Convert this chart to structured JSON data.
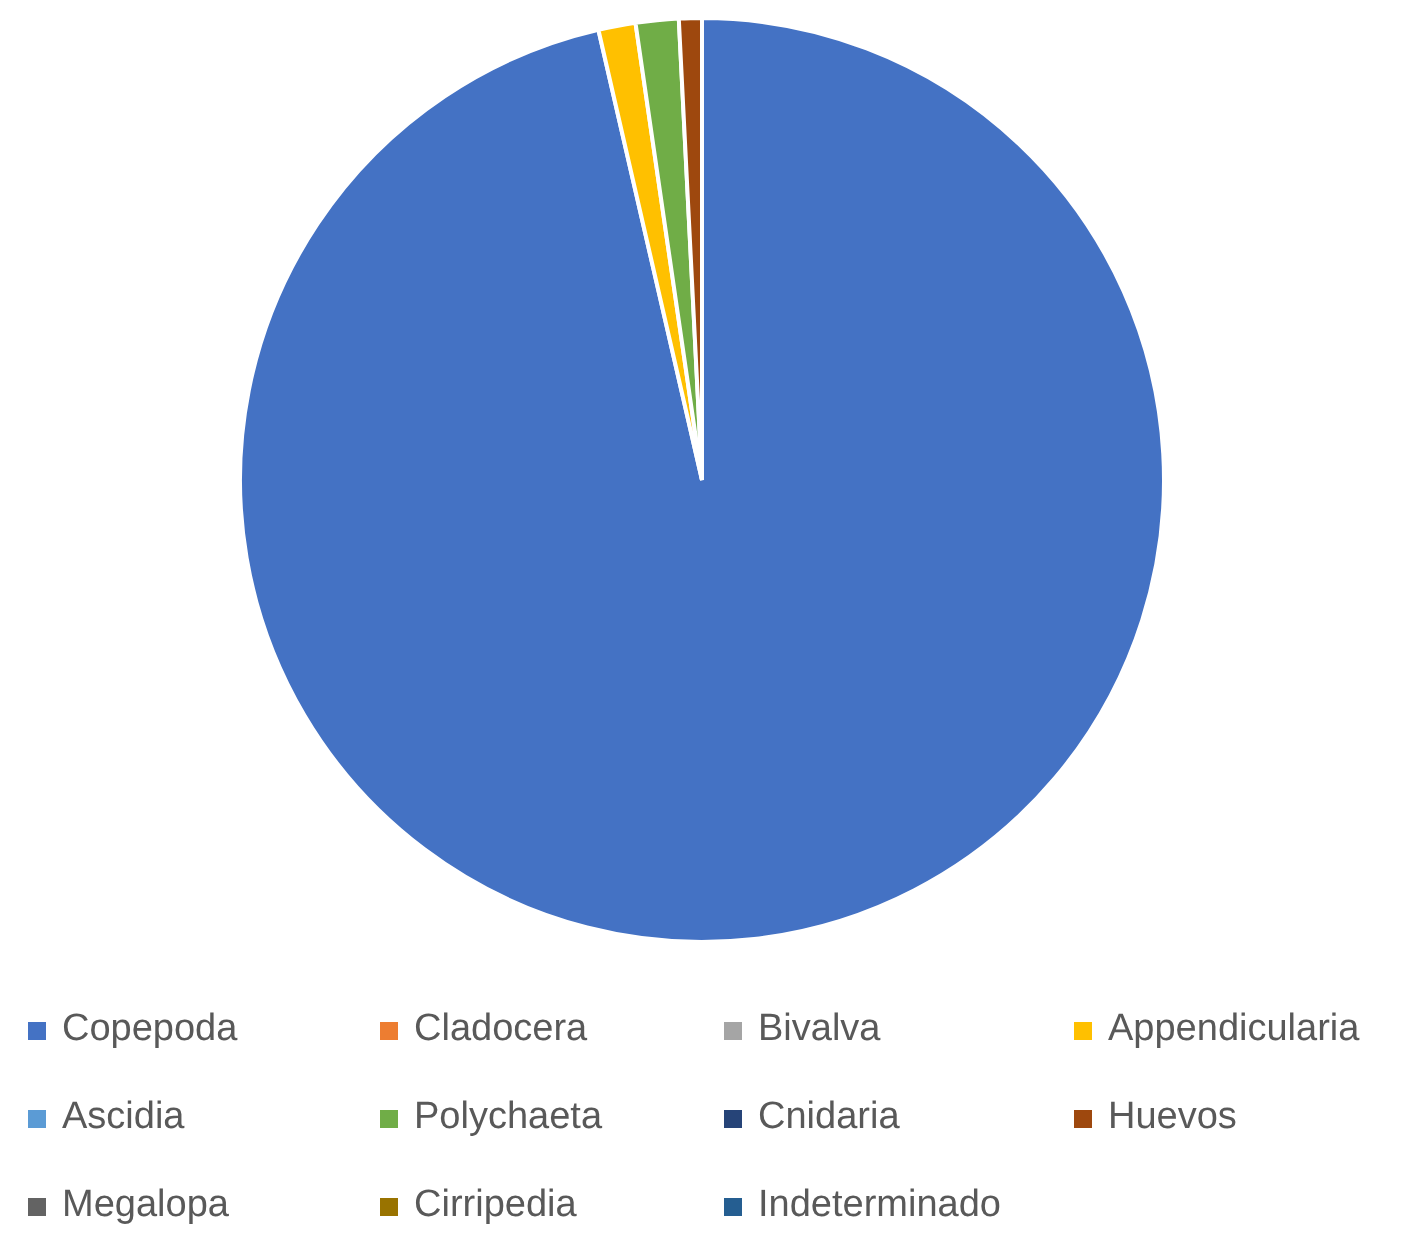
{
  "chart_data": {
    "type": "pie",
    "categories": [
      "Copepoda",
      "Cladocera",
      "Bivalva",
      "Appendicularia",
      "Ascidia",
      "Polychaeta",
      "Cnidaria",
      "Huevos",
      "Megalopa",
      "Cirripedia",
      "Indeterminado"
    ],
    "values": [
      96.4,
      0,
      0,
      1.3,
      0,
      1.5,
      0,
      0.8,
      0,
      0,
      0
    ],
    "colors": [
      "#4472c4",
      "#ed7d31",
      "#a5a5a5",
      "#ffc000",
      "#5b9bd5",
      "#70ad47",
      "#264478",
      "#9e480e",
      "#636363",
      "#997300",
      "#255e91"
    ],
    "legend": "bottom"
  }
}
